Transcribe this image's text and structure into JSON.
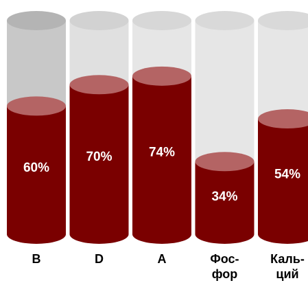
{
  "chart_data": {
    "type": "bar",
    "style": "3d-cylinder",
    "categories": [
      [
        "B"
      ],
      [
        "D"
      ],
      [
        "A"
      ],
      [
        "Фос-",
        "фор"
      ],
      [
        "Каль-",
        "ций"
      ]
    ],
    "values": [
      60,
      70,
      74,
      34,
      54
    ],
    "value_labels": [
      "60%",
      "70%",
      "74%",
      "34%",
      "54%"
    ],
    "ylim": [
      0,
      100
    ],
    "unit": "%",
    "grid": false,
    "legend": "none",
    "colors": {
      "fill_body": "#7a0000",
      "fill_top": "#b46464",
      "track": [
        "#c8c8c8",
        "#e0e0e0",
        "#e6e6e6",
        "#e6e6e6",
        "#e6e6e6"
      ],
      "track_top": [
        "#b4b4b4",
        "#d2d2d2",
        "#d7d7d7",
        "#d9d9d9",
        "#d9d9d9"
      ],
      "value_text": "#ffffff",
      "category_text": "#000000"
    }
  }
}
